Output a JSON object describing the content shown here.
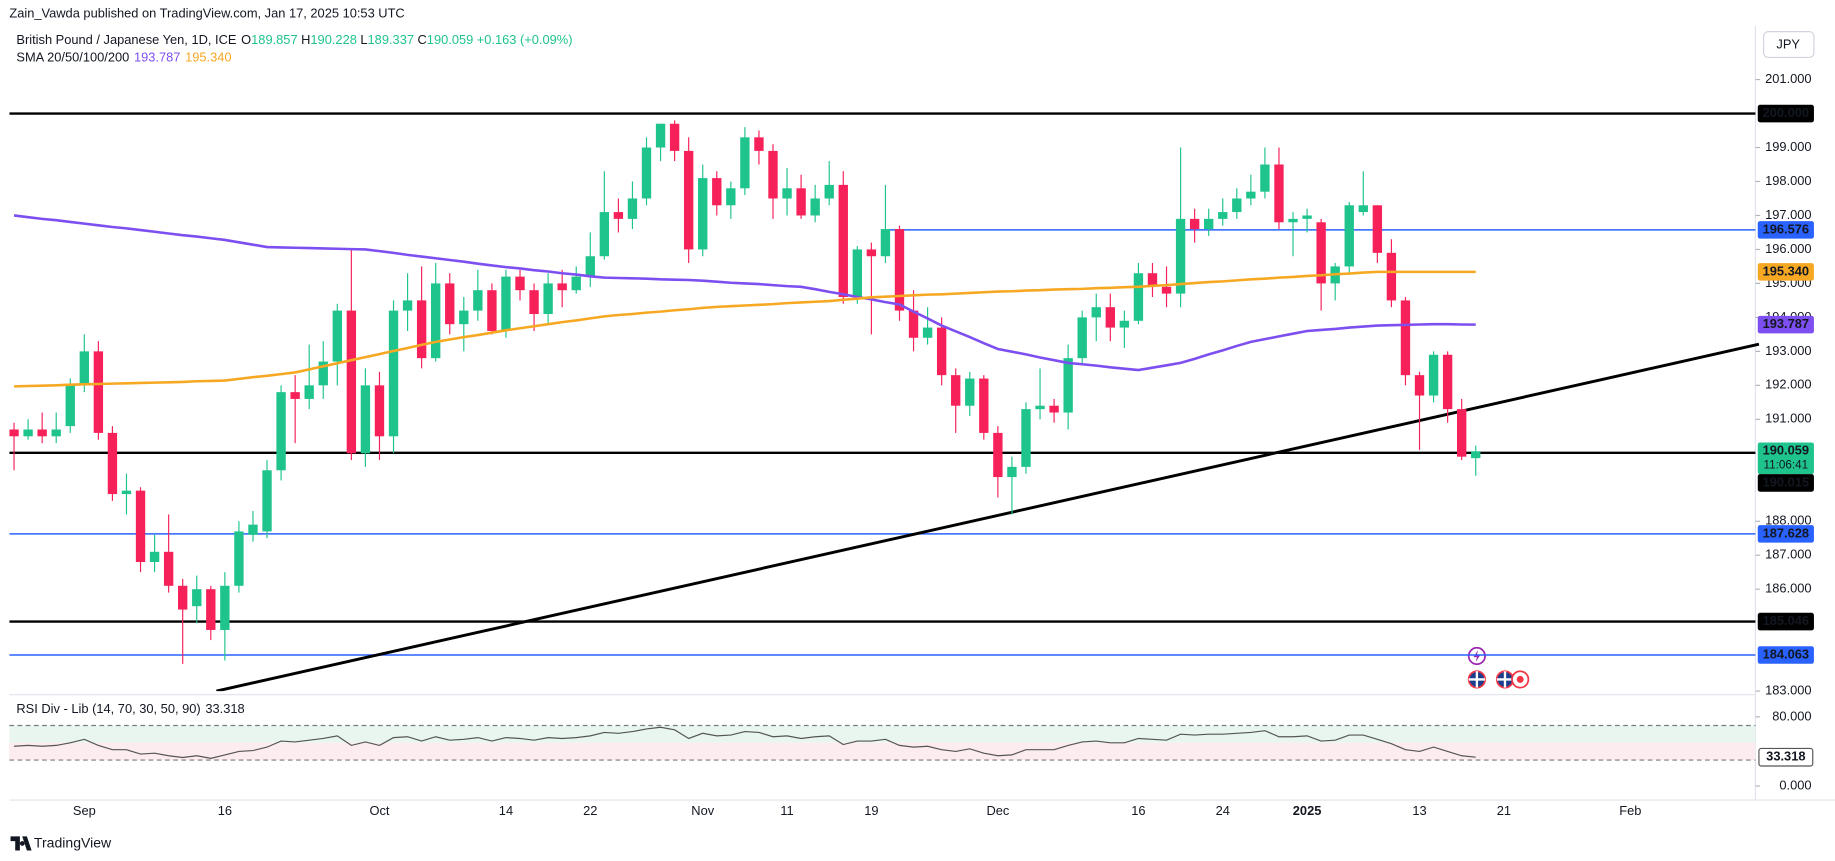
{
  "chart_data": {
    "type": "candlestick",
    "header": "Zain_Vawda published on TradingView.com, Jan 17, 2025 10:53 UTC",
    "symbol": "British Pound / Japanese Yen, 1D, ICE",
    "ohlc_letters": [
      "O",
      "H",
      "L",
      "C"
    ],
    "change": {
      "value": 0.163,
      "label": "+0.163"
    },
    "change_pct": {
      "value": 0.09,
      "label": "(+0.09%)"
    },
    "currency": "JPY",
    "countdown": "11:06:41",
    "brand": "TradingView",
    "up_color": "#1fc48d",
    "down_color": "#f7215a",
    "grid": false,
    "ylim": [
      182.93,
      202.48
    ],
    "xlim": [
      -0.333,
      123.9
    ],
    "yticks": [
      {
        "value": 201,
        "label": "201.000"
      },
      {
        "value": 199,
        "label": "199.000"
      },
      {
        "value": 198,
        "label": "198.000"
      },
      {
        "value": 197,
        "label": "197.000"
      },
      {
        "value": 196,
        "label": "196.000"
      },
      {
        "value": 195,
        "label": "195.000"
      },
      {
        "value": 194,
        "label": "194.000"
      },
      {
        "value": 193,
        "label": "193.000"
      },
      {
        "value": 192,
        "label": "192.000"
      },
      {
        "value": 191,
        "label": "191.000"
      },
      {
        "value": 188,
        "label": "188.000"
      },
      {
        "value": 187,
        "label": "187.000"
      },
      {
        "value": 186,
        "label": "186.000"
      },
      {
        "value": 183,
        "label": "183.000"
      }
    ],
    "xticks": [
      {
        "value": 5,
        "label": "Sep"
      },
      {
        "value": 15,
        "label": "16"
      },
      {
        "value": 26,
        "label": "Oct"
      },
      {
        "value": 35,
        "label": "14"
      },
      {
        "value": 41,
        "label": "22"
      },
      {
        "value": 49,
        "label": "Nov"
      },
      {
        "value": 55,
        "label": "11"
      },
      {
        "value": 61,
        "label": "19"
      },
      {
        "value": 70,
        "label": "Dec"
      },
      {
        "value": 80,
        "label": "16"
      },
      {
        "value": 86,
        "label": "24"
      },
      {
        "value": 92,
        "label": "2025"
      },
      {
        "value": 100,
        "label": "13"
      },
      {
        "value": 106,
        "label": "21"
      },
      {
        "value": 115,
        "label": "Feb"
      }
    ],
    "candles": [
      [
        190.7,
        190.9,
        189.5,
        190.5
      ],
      [
        190.5,
        191.0,
        190.4,
        190.7
      ],
      [
        190.7,
        191.2,
        190.3,
        190.5
      ],
      [
        190.5,
        191.2,
        190.3,
        190.7
      ],
      [
        190.8,
        192.2,
        190.6,
        192.0
      ],
      [
        192.0,
        193.5,
        191.8,
        193.0
      ],
      [
        193.0,
        193.3,
        190.4,
        190.6
      ],
      [
        190.6,
        190.8,
        188.6,
        188.8
      ],
      [
        188.8,
        189.4,
        188.2,
        188.9
      ],
      [
        188.9,
        189.0,
        186.5,
        186.8
      ],
      [
        186.8,
        187.6,
        186.5,
        187.1
      ],
      [
        187.1,
        188.2,
        185.9,
        186.1
      ],
      [
        186.1,
        186.3,
        183.8,
        185.4
      ],
      [
        185.5,
        186.4,
        185.0,
        186.0
      ],
      [
        186.0,
        186.1,
        184.5,
        184.8
      ],
      [
        184.8,
        186.5,
        183.9,
        186.1
      ],
      [
        186.1,
        188.0,
        185.9,
        187.7
      ],
      [
        187.6,
        188.3,
        187.4,
        187.9
      ],
      [
        187.7,
        189.8,
        187.5,
        189.5
      ],
      [
        189.5,
        192.0,
        189.2,
        191.8
      ],
      [
        191.8,
        192.3,
        190.3,
        191.6
      ],
      [
        191.6,
        193.2,
        191.3,
        192.0
      ],
      [
        192.0,
        193.3,
        191.6,
        192.7
      ],
      [
        192.7,
        194.4,
        192.0,
        194.2
      ],
      [
        194.2,
        196.0,
        189.8,
        190.0
      ],
      [
        190.0,
        192.5,
        189.6,
        192.0
      ],
      [
        192.0,
        192.4,
        189.8,
        190.5
      ],
      [
        190.5,
        194.5,
        190.0,
        194.2
      ],
      [
        194.2,
        195.3,
        193.6,
        194.5
      ],
      [
        194.5,
        195.5,
        192.5,
        192.8
      ],
      [
        192.8,
        195.6,
        192.7,
        195.0
      ],
      [
        195.0,
        195.3,
        193.5,
        193.8
      ],
      [
        193.8,
        194.6,
        193.0,
        194.2
      ],
      [
        194.2,
        195.4,
        193.9,
        194.8
      ],
      [
        194.8,
        195.0,
        193.5,
        193.6
      ],
      [
        193.6,
        195.4,
        193.4,
        195.2
      ],
      [
        195.2,
        195.4,
        194.5,
        194.8
      ],
      [
        194.8,
        195.0,
        193.6,
        194.1
      ],
      [
        194.1,
        195.3,
        193.8,
        195.0
      ],
      [
        195.0,
        195.4,
        194.3,
        194.8
      ],
      [
        194.8,
        195.5,
        194.7,
        195.2
      ],
      [
        195.2,
        196.5,
        194.9,
        195.8
      ],
      [
        195.8,
        198.3,
        195.7,
        197.1
      ],
      [
        197.1,
        197.5,
        196.5,
        196.9
      ],
      [
        196.9,
        198.0,
        196.6,
        197.5
      ],
      [
        197.5,
        199.3,
        197.3,
        199.0
      ],
      [
        199.0,
        199.7,
        198.6,
        199.7
      ],
      [
        199.7,
        199.8,
        198.6,
        198.9
      ],
      [
        198.9,
        199.3,
        195.6,
        196.0
      ],
      [
        196.0,
        198.5,
        195.8,
        198.1
      ],
      [
        198.1,
        198.3,
        197.0,
        197.3
      ],
      [
        197.3,
        198.0,
        196.9,
        197.8
      ],
      [
        197.8,
        199.6,
        197.6,
        199.3
      ],
      [
        199.3,
        199.5,
        198.5,
        198.9
      ],
      [
        198.9,
        199.1,
        196.9,
        197.5
      ],
      [
        197.5,
        198.4,
        197.0,
        197.8
      ],
      [
        197.8,
        198.2,
        196.9,
        197.0
      ],
      [
        197.0,
        197.9,
        196.8,
        197.5
      ],
      [
        197.5,
        198.6,
        197.3,
        197.9
      ],
      [
        197.9,
        198.3,
        194.4,
        194.6
      ],
      [
        194.6,
        196.1,
        194.4,
        196.0
      ],
      [
        196.0,
        196.2,
        193.5,
        195.8
      ],
      [
        195.8,
        197.9,
        195.6,
        196.6
      ],
      [
        196.6,
        196.7,
        193.9,
        194.2
      ],
      [
        194.2,
        194.8,
        193.0,
        193.4
      ],
      [
        193.4,
        194.3,
        193.2,
        193.7
      ],
      [
        193.7,
        194.0,
        192.0,
        192.3
      ],
      [
        192.3,
        192.5,
        190.6,
        191.4
      ],
      [
        191.4,
        192.4,
        191.1,
        192.2
      ],
      [
        192.2,
        192.3,
        190.4,
        190.6
      ],
      [
        190.6,
        190.8,
        188.7,
        189.3
      ],
      [
        189.3,
        189.9,
        188.2,
        189.6
      ],
      [
        189.6,
        191.5,
        189.4,
        191.3
      ],
      [
        191.3,
        192.5,
        191.0,
        191.4
      ],
      [
        191.4,
        191.6,
        190.9,
        191.2
      ],
      [
        191.2,
        193.2,
        190.7,
        192.8
      ],
      [
        192.8,
        194.2,
        192.6,
        194.0
      ],
      [
        194.0,
        194.7,
        193.3,
        194.3
      ],
      [
        194.3,
        194.7,
        193.3,
        193.7
      ],
      [
        193.7,
        194.2,
        193.1,
        193.9
      ],
      [
        193.9,
        195.6,
        193.8,
        195.3
      ],
      [
        195.3,
        195.6,
        194.6,
        194.9
      ],
      [
        194.9,
        195.5,
        194.3,
        194.7
      ],
      [
        194.7,
        199.0,
        194.3,
        196.9
      ],
      [
        196.9,
        197.2,
        196.2,
        196.6
      ],
      [
        196.6,
        197.2,
        196.4,
        196.9
      ],
      [
        196.9,
        197.5,
        196.7,
        197.1
      ],
      [
        197.1,
        197.8,
        196.9,
        197.5
      ],
      [
        197.5,
        198.2,
        197.3,
        197.7
      ],
      [
        197.7,
        199.0,
        197.5,
        198.5
      ],
      [
        198.5,
        199.0,
        196.6,
        196.8
      ],
      [
        196.8,
        197.1,
        195.8,
        196.9
      ],
      [
        196.9,
        197.2,
        196.5,
        197.0
      ],
      [
        196.8,
        196.9,
        194.2,
        195.0
      ],
      [
        195.0,
        195.6,
        194.5,
        195.5
      ],
      [
        195.5,
        197.4,
        195.3,
        197.3
      ],
      [
        197.1,
        198.3,
        197.0,
        197.3
      ],
      [
        197.3,
        197.3,
        195.6,
        195.9
      ],
      [
        195.9,
        196.3,
        194.3,
        194.5
      ],
      [
        194.5,
        194.6,
        192.0,
        192.3
      ],
      [
        192.3,
        192.4,
        190.1,
        191.7
      ],
      [
        191.7,
        193.0,
        191.5,
        192.9
      ],
      [
        192.9,
        193.0,
        190.9,
        191.3
      ],
      [
        191.3,
        191.6,
        189.8,
        189.9
      ],
      [
        189.857,
        190.228,
        189.337,
        190.059
      ]
    ],
    "sma_legend": "SMA 20/50/100/200",
    "series": [
      {
        "color": "#7e4ff0",
        "last_label": "193.787",
        "values": [
          197.0,
          196.95,
          196.9,
          196.86,
          196.81,
          196.76,
          196.71,
          196.66,
          196.62,
          196.57,
          196.52,
          196.47,
          196.42,
          196.38,
          196.33,
          196.28,
          196.21,
          196.14,
          196.07,
          196.06,
          196.05,
          196.04,
          196.03,
          196.02,
          196.01,
          196.0,
          195.95,
          195.9,
          195.84,
          195.79,
          195.74,
          195.69,
          195.64,
          195.58,
          195.53,
          195.48,
          195.44,
          195.39,
          195.35,
          195.3,
          195.26,
          195.21,
          195.17,
          195.16,
          195.15,
          195.14,
          195.12,
          195.11,
          195.1,
          195.08,
          195.05,
          195.02,
          195.0,
          194.98,
          194.95,
          194.92,
          194.9,
          194.83,
          194.75,
          194.68,
          194.6,
          194.53,
          194.45,
          194.38,
          194.17,
          193.97,
          193.76,
          193.59,
          193.42,
          193.24,
          193.07,
          192.99,
          192.91,
          192.82,
          192.74,
          192.66,
          192.62,
          192.58,
          192.53,
          192.49,
          192.45,
          192.52,
          192.59,
          192.66,
          192.78,
          192.91,
          193.03,
          193.16,
          193.28,
          193.36,
          193.44,
          193.52,
          193.6,
          193.63,
          193.66,
          193.7,
          193.73,
          193.76,
          193.77,
          193.78,
          193.79,
          193.8,
          193.8,
          193.79,
          193.787
        ]
      },
      {
        "color": "#f7a823",
        "last_label": "195.340",
        "values": [
          191.97,
          191.98,
          191.99,
          192.0,
          192.02,
          192.03,
          192.04,
          192.05,
          192.06,
          192.07,
          192.08,
          192.09,
          192.1,
          192.12,
          192.13,
          192.14,
          192.19,
          192.24,
          192.28,
          192.33,
          192.38,
          192.47,
          192.56,
          192.65,
          192.74,
          192.83,
          192.92,
          193.01,
          193.1,
          193.19,
          193.28,
          193.35,
          193.42,
          193.48,
          193.55,
          193.62,
          193.68,
          193.74,
          193.8,
          193.86,
          193.91,
          193.97,
          194.03,
          194.07,
          194.1,
          194.14,
          194.17,
          194.21,
          194.24,
          194.28,
          194.31,
          194.33,
          194.35,
          194.37,
          194.39,
          194.42,
          194.44,
          194.46,
          194.48,
          194.52,
          194.55,
          194.59,
          194.61,
          194.63,
          194.65,
          194.67,
          194.68,
          194.7,
          194.72,
          194.74,
          194.76,
          194.77,
          194.79,
          194.8,
          194.82,
          194.83,
          194.84,
          194.86,
          194.87,
          194.89,
          194.9,
          194.93,
          194.95,
          194.98,
          195.01,
          195.04,
          195.06,
          195.09,
          195.12,
          195.14,
          195.17,
          195.19,
          195.22,
          195.24,
          195.27,
          195.29,
          195.32,
          195.34,
          195.34,
          195.34,
          195.34,
          195.34,
          195.34,
          195.34,
          195.34
        ]
      }
    ],
    "levels": [
      {
        "value": 200,
        "label": "200.000",
        "color": "#000000"
      },
      {
        "value": 196.576,
        "label": "196.576",
        "color": "#2962ff",
        "from": 62
      },
      {
        "value": 190.015,
        "label": "190.015",
        "color": "#000000"
      },
      {
        "value": 187.628,
        "label": "187.628",
        "color": "#2962ff"
      },
      {
        "value": 185.046,
        "label": "185.046",
        "color": "#000000"
      },
      {
        "value": 184.063,
        "label": "184.063",
        "color": "#2962ff"
      }
    ],
    "trendline": {
      "color": "#000000",
      "points": [
        [
          14.4,
          183.0
        ],
        [
          124.15,
          193.21
        ]
      ]
    },
    "rsi": {
      "name": "RSI Div - Lib (14, 70, 30, 50, 90)",
      "color": "#555555",
      "ylim": [
        -16.3,
        103
      ],
      "yticks": [
        {
          "value": 80,
          "label": "80.000"
        },
        {
          "value": 0,
          "label": "0.000"
        }
      ],
      "bands": [
        70,
        50,
        30
      ],
      "values": [
        46,
        47,
        46,
        47,
        50,
        54,
        47,
        42,
        42,
        37,
        38,
        35,
        33,
        35,
        32,
        36,
        40,
        41,
        45,
        52,
        51,
        53,
        55,
        58,
        47,
        51,
        47,
        56,
        57,
        52,
        57,
        53,
        54,
        56,
        52,
        56,
        55,
        53,
        56,
        55,
        56,
        58,
        62,
        61,
        63,
        66,
        68,
        65,
        55,
        61,
        58,
        59,
        63,
        62,
        57,
        58,
        55,
        57,
        58,
        48,
        52,
        52,
        54,
        47,
        45,
        46,
        42,
        40,
        43,
        38,
        35,
        36,
        42,
        42,
        42,
        47,
        51,
        52,
        50,
        50,
        55,
        54,
        53,
        60,
        59,
        60,
        60,
        61,
        62,
        64,
        57,
        57,
        58,
        52,
        53,
        59,
        59,
        54,
        49,
        42,
        40,
        45,
        40,
        35,
        33.318
      ]
    }
  }
}
